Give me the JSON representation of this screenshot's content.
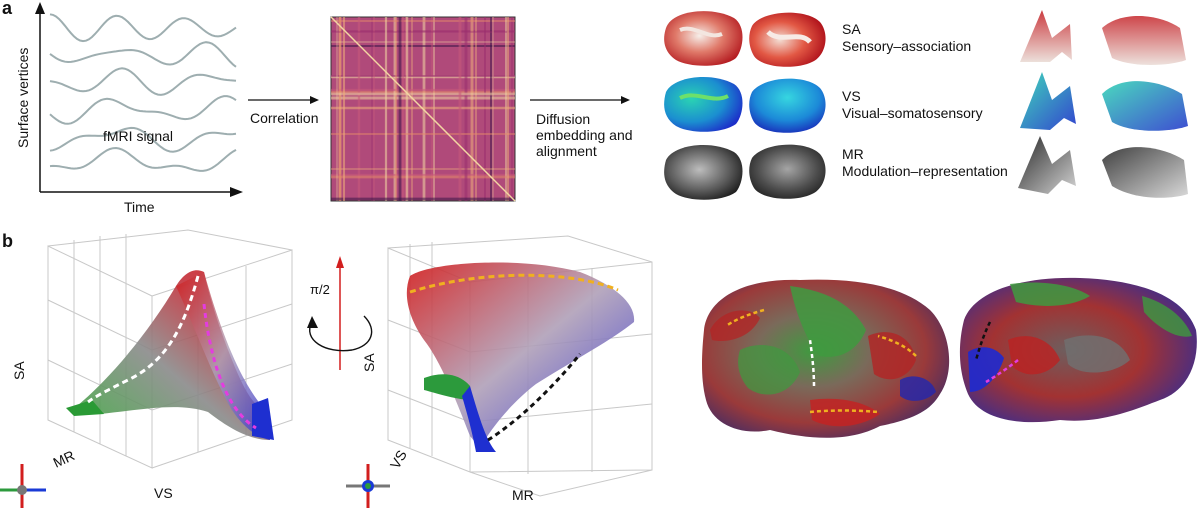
{
  "panel_a": {
    "letter": "a",
    "y_axis_label": "Surface vertices",
    "x_axis_label": "Time",
    "signal_label": "fMRI signal",
    "arrow1_label": "Correlation",
    "arrow2_label_lines": [
      "Diffusion",
      "embedding and",
      "alignment"
    ],
    "gradients": [
      {
        "abbr": "SA",
        "name": "Sensory–association",
        "colors": [
          "#c1272d",
          "#f2e8e3"
        ]
      },
      {
        "abbr": "VS",
        "name": "Visual–somatosensory",
        "colors": [
          "#1a4dd6",
          "#2fd6b5"
        ]
      },
      {
        "abbr": "MR",
        "name": "Modulation–representation",
        "colors": [
          "#202020",
          "#cfcfcf"
        ]
      }
    ]
  },
  "panel_b": {
    "letter": "b",
    "plot1": {
      "vertical_axis": "SA",
      "depth_axis": "MR",
      "horizontal_axis": "VS"
    },
    "rotation_label": "π/2",
    "plot2": {
      "vertical_axis": "SA",
      "depth_axis": "VS",
      "horizontal_axis": "MR"
    }
  },
  "colors": {
    "signal_line": "#9eaeb0",
    "matrix_base": "#b04a7a",
    "axis_red": "#d21e1e",
    "axis_blue": "#1a3ad6",
    "axis_green": "#2c9a3c",
    "arrow_white": "#ffffff",
    "arrow_magenta": "#e43ce0",
    "arrow_yellow": "#f0b020",
    "arrow_black": "#111111"
  }
}
